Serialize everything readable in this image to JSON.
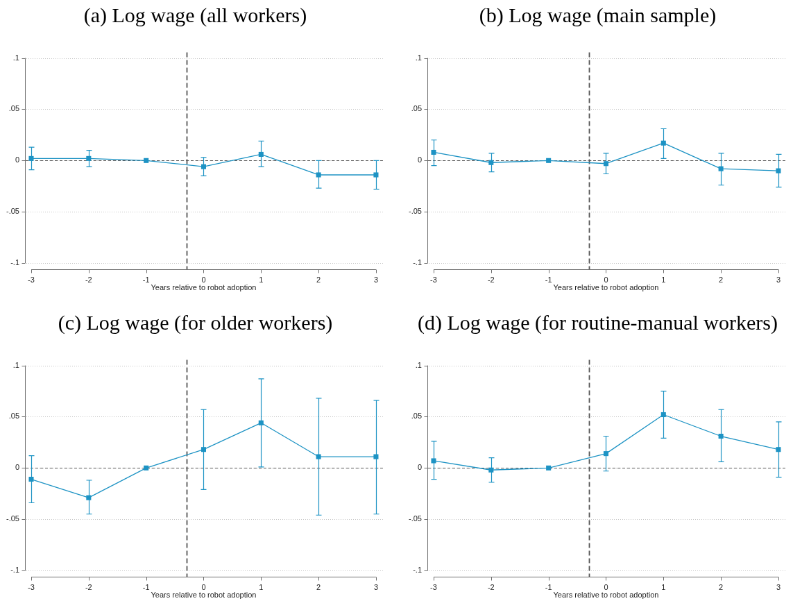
{
  "chart_data": [
    {
      "type": "line",
      "title": "(a) Log wage (all workers)",
      "xlabel": "Years relative to robot adoption",
      "x": [
        -3,
        -2,
        -1,
        0,
        1,
        2,
        3
      ],
      "values": [
        0.002,
        0.002,
        0,
        -0.006,
        0.006,
        -0.014,
        -0.014
      ],
      "errors": [
        [
          -0.009,
          0.013
        ],
        [
          -0.006,
          0.01
        ],
        null,
        [
          -0.015,
          0.003
        ],
        [
          -0.006,
          0.019
        ],
        [
          -0.027,
          0
        ],
        [
          -0.028,
          0
        ]
      ],
      "color": "#1d93c4",
      "marker": "square",
      "grid": "y",
      "xlim": [
        -3,
        3
      ],
      "xticks": [
        -3,
        -2,
        -1,
        0,
        1,
        2,
        3
      ],
      "ylim": [
        -0.1,
        0.1
      ],
      "yticks": [
        {
          "value": -0.1,
          "label": "-.1"
        },
        {
          "value": -0.05,
          "label": "-.05"
        },
        {
          "value": 0,
          "label": "0"
        },
        {
          "value": 0.05,
          "label": ".05"
        },
        {
          "value": 0.1,
          "label": ".1"
        }
      ],
      "ref_lines": [
        {
          "axis": "x",
          "value": -0.3,
          "color": "#555555",
          "line_style": "dashed"
        },
        {
          "axis": "y",
          "value": 0,
          "color": "#555555",
          "line_style": "dashed"
        }
      ]
    },
    {
      "type": "line",
      "title": "(b) Log wage (main sample)",
      "xlabel": "Years relative to robot adoption",
      "x": [
        -3,
        -2,
        -1,
        0,
        1,
        2,
        3
      ],
      "values": [
        0.008,
        -0.002,
        0,
        -0.003,
        0.017,
        -0.008,
        -0.01
      ],
      "errors": [
        [
          -0.005,
          0.02
        ],
        [
          -0.011,
          0.007
        ],
        null,
        [
          -0.013,
          0.007
        ],
        [
          0.002,
          0.031
        ],
        [
          -0.024,
          0.007
        ],
        [
          -0.026,
          0.006
        ]
      ],
      "color": "#1d93c4",
      "marker": "square",
      "grid": "y",
      "xlim": [
        -3,
        3
      ],
      "xticks": [
        -3,
        -2,
        -1,
        0,
        1,
        2,
        3
      ],
      "ylim": [
        -0.1,
        0.1
      ],
      "yticks": [
        {
          "value": -0.1,
          "label": "-.1"
        },
        {
          "value": -0.05,
          "label": "-.05"
        },
        {
          "value": 0,
          "label": "0"
        },
        {
          "value": 0.05,
          "label": ".05"
        },
        {
          "value": 0.1,
          "label": ".1"
        }
      ],
      "ref_lines": [
        {
          "axis": "x",
          "value": -0.3,
          "color": "#555555",
          "line_style": "dashed"
        },
        {
          "axis": "y",
          "value": 0,
          "color": "#555555",
          "line_style": "dashed"
        }
      ]
    },
    {
      "type": "line",
      "title": "(c) Log wage (for older workers)",
      "xlabel": "Years relative to robot adoption",
      "x": [
        -3,
        -2,
        -1,
        0,
        1,
        2,
        3
      ],
      "values": [
        -0.011,
        -0.029,
        0,
        0.018,
        0.044,
        0.011,
        0.011
      ],
      "errors": [
        [
          -0.034,
          0.012
        ],
        [
          -0.045,
          -0.012
        ],
        null,
        [
          -0.021,
          0.057
        ],
        [
          0.001,
          0.087
        ],
        [
          -0.046,
          0.068
        ],
        [
          -0.045,
          0.066
        ]
      ],
      "color": "#1d93c4",
      "marker": "square",
      "grid": "y",
      "xlim": [
        -3,
        3
      ],
      "xticks": [
        -3,
        -2,
        -1,
        0,
        1,
        2,
        3
      ],
      "ylim": [
        -0.1,
        0.1
      ],
      "yticks": [
        {
          "value": -0.1,
          "label": "-.1"
        },
        {
          "value": -0.05,
          "label": "-.05"
        },
        {
          "value": 0,
          "label": "0"
        },
        {
          "value": 0.05,
          "label": ".05"
        },
        {
          "value": 0.1,
          "label": ".1"
        }
      ],
      "ref_lines": [
        {
          "axis": "x",
          "value": -0.3,
          "color": "#555555",
          "line_style": "dashed"
        },
        {
          "axis": "y",
          "value": 0,
          "color": "#555555",
          "line_style": "dashed"
        }
      ]
    },
    {
      "type": "line",
      "title": "(d) Log wage (for routine-manual workers)",
      "xlabel": "Years relative to robot adoption",
      "x": [
        -3,
        -2,
        -1,
        0,
        1,
        2,
        3
      ],
      "values": [
        0.007,
        -0.002,
        0,
        0.014,
        0.052,
        0.031,
        0.018
      ],
      "errors": [
        [
          -0.011,
          0.026
        ],
        [
          -0.014,
          0.01
        ],
        null,
        [
          -0.003,
          0.031
        ],
        [
          0.029,
          0.075
        ],
        [
          0.006,
          0.057
        ],
        [
          -0.009,
          0.045
        ]
      ],
      "color": "#1d93c4",
      "marker": "square",
      "grid": "y",
      "xlim": [
        -3,
        3
      ],
      "xticks": [
        -3,
        -2,
        -1,
        0,
        1,
        2,
        3
      ],
      "ylim": [
        -0.1,
        0.1
      ],
      "yticks": [
        {
          "value": -0.1,
          "label": "-.1"
        },
        {
          "value": -0.05,
          "label": "-.05"
        },
        {
          "value": 0,
          "label": "0"
        },
        {
          "value": 0.05,
          "label": ".05"
        },
        {
          "value": 0.1,
          "label": ".1"
        }
      ],
      "ref_lines": [
        {
          "axis": "x",
          "value": -0.3,
          "color": "#555555",
          "line_style": "dashed"
        },
        {
          "axis": "y",
          "value": 0,
          "color": "#555555",
          "line_style": "dashed"
        }
      ]
    }
  ]
}
